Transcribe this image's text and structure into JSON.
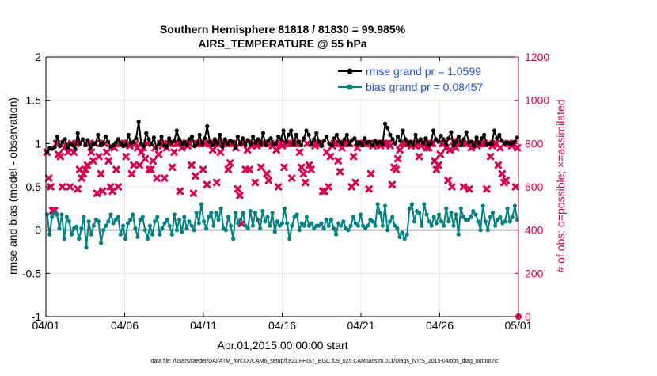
{
  "chart_data": {
    "type": "line",
    "title": "Southern Hemisphere 81818 / 81830 = 99.985%",
    "subtitle": "AIRS_TEMPERATURE @ 55 hPa",
    "xlabel": "Apr.01,2015 00:00:00 start",
    "ylabel_left": "rmse and bias (model - observation)",
    "ylabel_right": "# of obs: o=possible; ×=assimilated",
    "footnote": "data file: /Users/raeder/DAI/ATM_forcXX/CAM6_setup/f.e21.FHIST_BGC.f09_025.CAM6assim.011/Diags_NTrS_2015-04/obs_diag_output.nc",
    "xlim": [
      0,
      30
    ],
    "ylim_left": [
      -1,
      2
    ],
    "ylim_right": [
      0,
      1200
    ],
    "x_ticks": [
      0,
      5,
      10,
      15,
      20,
      25,
      30
    ],
    "x_tick_labels": [
      "04/01",
      "04/06",
      "04/11",
      "04/16",
      "04/21",
      "04/26",
      "05/01"
    ],
    "y_left_ticks": [
      -1,
      -0.5,
      0,
      0.5,
      1,
      1.5,
      2
    ],
    "y_left_tick_labels": [
      "-1",
      "-0.5",
      "0",
      "0.5",
      "1",
      "1.5",
      "2"
    ],
    "y_right_ticks": [
      0,
      200,
      400,
      600,
      800,
      1000,
      1200
    ],
    "y_right_tick_labels": [
      "0",
      "200",
      "400",
      "600",
      "800",
      "1000",
      "1200"
    ],
    "grid": true,
    "legend_position": "top-right",
    "colors": {
      "rmse": "#000000",
      "bias": "#008080",
      "obs": "#d6004f",
      "legend_text": "#1f4fd0",
      "zero_line": "#b0b0b0",
      "grid": "#e6e6e6"
    },
    "series": [
      {
        "name": "rmse grand pr = 1.0599",
        "axis": "left",
        "marker": "circle",
        "values": [
          0.9,
          0.95,
          0.94,
          0.96,
          1.08,
          0.97,
          1.02,
          1.05,
          0.95,
          0.99,
          0.98,
          0.94,
          1.12,
          1.0,
          1.05,
          0.98,
          1.04,
          0.95,
          0.99,
          1.0,
          1.1,
          0.98,
          1.0,
          1.08,
          1.02,
          0.96,
          0.98,
          1.01,
          1.05,
          1.0,
          0.97,
          0.98,
          1.1,
          1.0,
          1.02,
          1.06,
          1.25,
          1.0,
          0.97,
          1.12,
          1.05,
          0.99,
          1.07,
          0.95,
          1.0,
          1.08,
          0.98,
          0.96,
          1.06,
          1.01,
          1.03,
          1.15,
          1.05,
          0.99,
          1.02,
          0.98,
          1.05,
          1.08,
          0.97,
          1.0,
          1.1,
          0.99,
          1.06,
          1.2,
          1.02,
          0.98,
          1.05,
          1.0,
          1.1,
          0.96,
          1.05,
          0.99,
          1.03,
          1.02,
          0.95,
          1.08,
          1.0,
          1.06,
          0.98,
          1.04,
          0.99,
          1.08,
          1.01,
          1.05,
          1.0,
          1.12,
          0.98,
          1.03,
          1.06,
          0.99,
          1.0,
          1.08,
          1.05,
          1.15,
          1.02,
          1.1,
          1.15,
          0.99,
          1.1,
          1.02,
          0.98,
          1.06,
          1.15,
          1.1,
          0.99,
          1.05,
          1.12,
          1.02,
          0.97,
          1.03,
          1.08,
          1.0,
          0.98,
          1.06,
          1.1,
          1.02,
          1.0,
          1.05,
          1.1,
          0.99,
          1.04,
          1.06,
          0.99,
          1.01,
          0.98,
          1.06,
          1.01,
          1.02,
          0.98,
          1.03,
          1.0,
          1.02,
          0.99,
          1.23,
          1.18,
          1.1,
          1.05,
          1.0,
          1.08,
          1.03,
          1.15,
          1.05,
          0.99,
          1.02,
          0.98,
          1.1,
          1.02,
          1.05,
          1.0,
          1.06,
          0.98,
          1.0,
          1.15,
          1.05,
          1.02,
          1.09,
          1.05,
          0.99,
          1.06,
          1.13,
          0.98,
          1.02,
          1.08,
          0.98,
          1.05,
          1.13,
          1.01,
          1.02,
          0.97,
          1.07,
          1.0,
          1.06,
          1.1,
          0.99,
          1.0,
          1.0,
          1.15,
          1.06,
          1.1,
          1.03,
          1.0,
          1.01,
          1.0,
          1.0,
          1.02,
          1.07
        ]
      },
      {
        "name": "bias grand pr = 0.08457",
        "axis": "left",
        "marker": "circle",
        "values": [
          0.18,
          -0.05,
          0.15,
          0.2,
          0.18,
          0.02,
          0.18,
          -0.1,
          0.15,
          0.1,
          -0.05,
          0.02,
          0.04,
          -0.1,
          0.02,
          0.15,
          -0.2,
          0.1,
          -0.05,
          0.05,
          0.12,
          0.1,
          -0.15,
          0.0,
          0.05,
          0.1,
          0.18,
          0.08,
          0.12,
          0.15,
          -0.05,
          0.05,
          -0.1,
          0.08,
          0.12,
          0.18,
          0.02,
          -0.08,
          0.12,
          0.15,
          0.0,
          -0.1,
          0.05,
          -0.05,
          0.1,
          0.15,
          -0.05,
          0.02,
          0.08,
          0.12,
          0.05,
          -0.05,
          0.18,
          0.0,
          0.12,
          -0.02,
          0.15,
          0.02,
          0.1,
          0.05,
          0.0,
          0.2,
          0.08,
          0.3,
          0.1,
          0.02,
          0.15,
          0.2,
          0.05,
          0.2,
          0.12,
          0.25,
          0.02,
          0.0,
          0.15,
          0.05,
          -0.1,
          0.2,
          0.08,
          0.12,
          0.2,
          0.05,
          0.02,
          0.22,
          0.05,
          0.2,
          0.12,
          0.02,
          0.22,
          0.1,
          0.15,
          0.05,
          0.2,
          -0.02,
          0.1,
          0.05,
          0.08,
          0.25,
          0.08,
          -0.1,
          0.05,
          0.15,
          0.18,
          0.0,
          0.08,
          0.05,
          0.15,
          0.05,
          0.08,
          0.02,
          0.05,
          0.05,
          0.08,
          0.02,
          0.12,
          0.05,
          0.12,
          0.02,
          -0.05,
          0.08,
          0.05,
          0.1,
          0.02,
          0.0,
          0.05,
          0.15,
          0.08,
          0.05,
          0.18,
          0.05,
          0.02,
          0.05,
          0.12,
          0.1,
          0.05,
          0.3,
          0.2,
          0.05,
          0.28,
          0.0,
          0.1,
          0.15,
          0.05,
          0.02,
          -0.08,
          -0.03,
          -0.1,
          -0.05,
          0.25,
          0.3,
          0.1,
          0.22,
          0.2,
          0.05,
          0.3,
          0.18,
          0.1,
          0.05,
          0.15,
          0.08,
          0.18,
          0.1,
          0.05,
          0.25,
          0.1,
          0.2,
          0.05,
          0.18,
          -0.05,
          0.25,
          0.15,
          0.12,
          0.12,
          0.15,
          0.22,
          0.18,
          0.1,
          0.0,
          0.28,
          0.1,
          0.0,
          0.15,
          0.2,
          0.05,
          0.12,
          0.15,
          0.08,
          0.1,
          0.25,
          0.1,
          0.15,
          0.28,
          0.12
        ]
      },
      {
        "name": "# of obs (assimilated)",
        "axis": "right",
        "marker": "x",
        "values": [
          760,
          640,
          600,
          490,
          490,
          800,
          750,
          740,
          600,
          780,
          790,
          760,
          600,
          800,
          760,
          800,
          590,
          680,
          640,
          660,
          680,
          700,
          800,
          760,
          720,
          800,
          570,
          740,
          660,
          580,
          800,
          760,
          720,
          600,
          580,
          780,
          680,
          600,
          800,
          800,
          800,
          740,
          800,
          790,
          660,
          700,
          800,
          780,
          700,
          760,
          780,
          730,
          800,
          680,
          680,
          720,
          780,
          640,
          750,
          800,
          790,
          640,
          780,
          800,
          800,
          690,
          760,
          800,
          800,
          580,
          780,
          800,
          800,
          790,
          800,
          700,
          570,
          650,
          800,
          800,
          800,
          680,
          800,
          610,
          800,
          800,
          770,
          800,
          620,
          800,
          760,
          800,
          800,
          800,
          680,
          710,
          800,
          800,
          780,
          590,
          560,
          430,
          800,
          680,
          770,
          680,
          790,
          800,
          620,
          790,
          800,
          690,
          800,
          800,
          660,
          630,
          800,
          790,
          800,
          770,
          600,
          800,
          790,
          690,
          800,
          800,
          800,
          640,
          800,
          800,
          800,
          760,
          690,
          660,
          620,
          800,
          700,
          680,
          800,
          790,
          800,
          800,
          800,
          580,
          580,
          760,
          600,
          740,
          790,
          800,
          800,
          720,
          670,
          780,
          800,
          800,
          800,
          800,
          600,
          740,
          620,
          780,
          800,
          800,
          800,
          800,
          800,
          590,
          660,
          790,
          800,
          800,
          800,
          790,
          800,
          800,
          800,
          800,
          790,
          610,
          690,
          680,
          730,
          770,
          800,
          800,
          800,
          800,
          800,
          790,
          800,
          790,
          800,
          740,
          790,
          800,
          800,
          780,
          780,
          800,
          800,
          720,
          680,
          700,
          750,
          800,
          800,
          780,
          630,
          770,
          600,
          810,
          780,
          800,
          800,
          800,
          600,
          800,
          800,
          590,
          780,
          800,
          800,
          790,
          800,
          800,
          800,
          800,
          590,
          800,
          740,
          790,
          800,
          800,
          700,
          780,
          660,
          620,
          630,
          800,
          800,
          790,
          800,
          600,
          780
        ]
      }
    ],
    "labels": {
      "legend_rmse": "rmse grand pr = 1.0599",
      "legend_bias": "bias grand pr = 0.08457"
    }
  }
}
